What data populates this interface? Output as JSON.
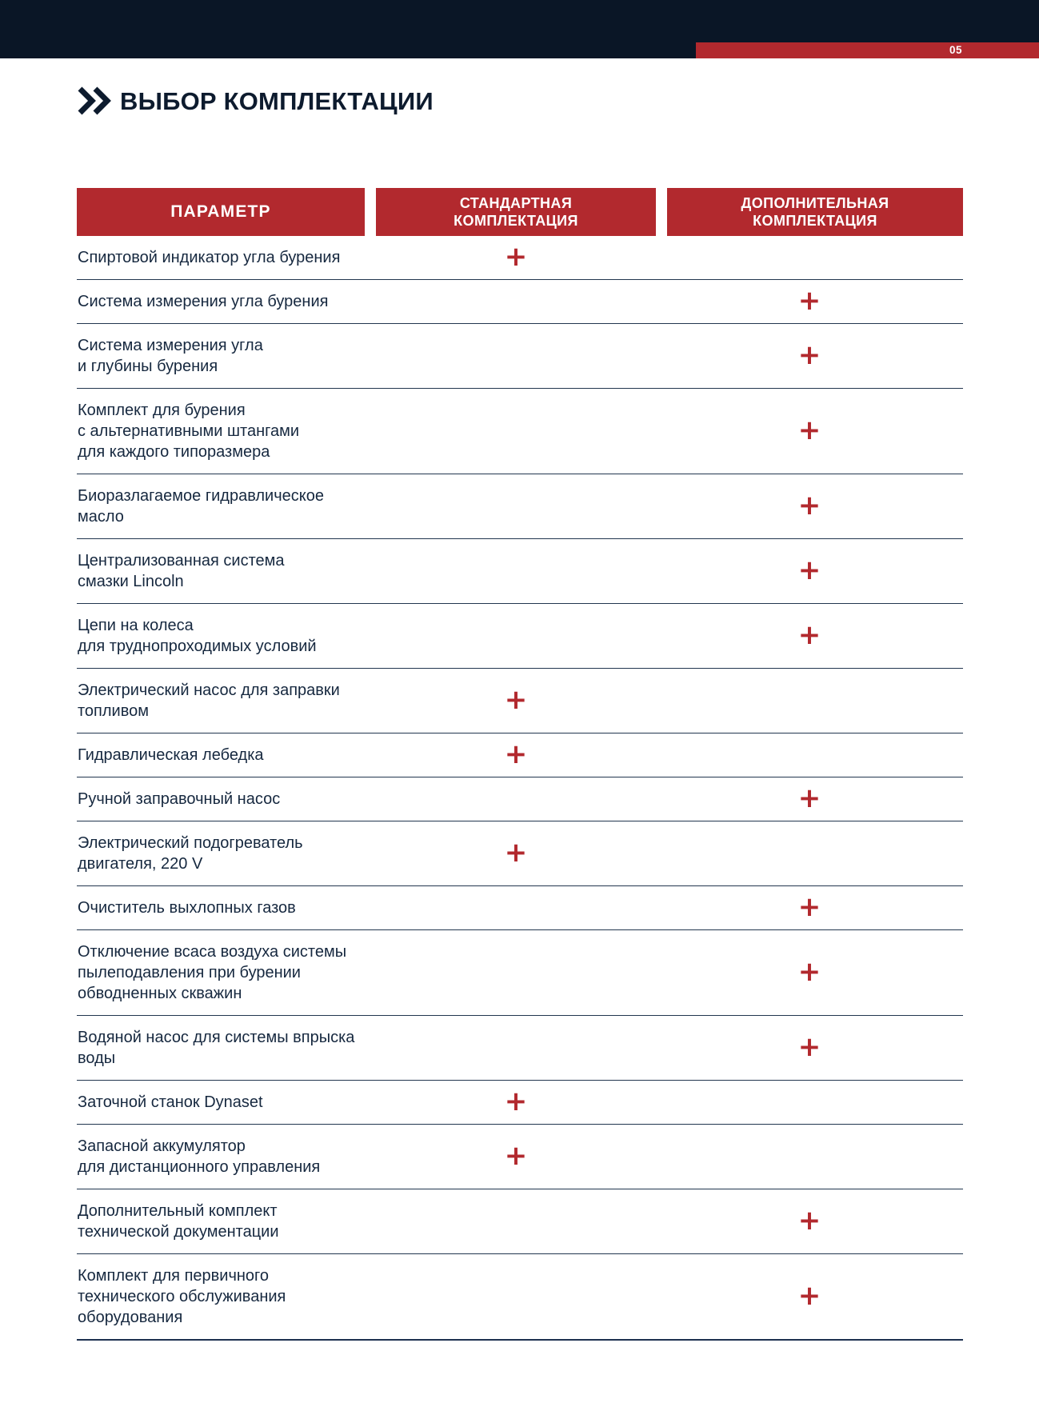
{
  "page": {
    "number": "05"
  },
  "title": {
    "text": "ВЫБОР КОМПЛЕКТАЦИИ",
    "icon": "double-chevron-right-icon"
  },
  "colors": {
    "navy": "#0a1626",
    "red": "#b2292e",
    "text": "#16283f",
    "rule": "#22364f"
  },
  "table": {
    "plus_symbol": "+",
    "columns": [
      {
        "key": "param",
        "label": "ПАРАМЕТР"
      },
      {
        "key": "standard",
        "label": "СТАНДАРТНАЯ\nКОМПЛЕКТАЦИЯ"
      },
      {
        "key": "additional",
        "label": "ДОПОЛНИТЕЛЬНАЯ\nКОМПЛЕКТАЦИЯ"
      }
    ],
    "rows": [
      {
        "lines": [
          "Спиртовой индикатор угла бурения"
        ],
        "standard": true,
        "additional": false
      },
      {
        "lines": [
          "Система измерения угла бурения"
        ],
        "standard": false,
        "additional": true
      },
      {
        "lines": [
          "Система измерения угла",
          "и глубины бурения"
        ],
        "standard": false,
        "additional": true
      },
      {
        "lines": [
          "Комплект для бурения",
          "с альтернативными штангами",
          "для каждого типоразмера"
        ],
        "standard": false,
        "additional": true
      },
      {
        "lines": [
          "Биоразлагаемое гидравлическое масло"
        ],
        "standard": false,
        "additional": true
      },
      {
        "lines": [
          "Централизованная система",
          "смазки Lincoln"
        ],
        "standard": false,
        "additional": true
      },
      {
        "lines": [
          "Цепи на колеса",
          "для труднопроходимых условий"
        ],
        "standard": false,
        "additional": true
      },
      {
        "lines": [
          "Электрический насос для заправки",
          "топливом"
        ],
        "standard": true,
        "additional": false
      },
      {
        "lines": [
          "Гидравлическая лебедка"
        ],
        "standard": true,
        "additional": false
      },
      {
        "lines": [
          "Ручной заправочный насос"
        ],
        "standard": false,
        "additional": true
      },
      {
        "lines": [
          "Электрический подогреватель",
          "двигателя, 220 V"
        ],
        "standard": true,
        "additional": false
      },
      {
        "lines": [
          "Очиститель выхлопных газов"
        ],
        "standard": false,
        "additional": true
      },
      {
        "lines": [
          "Отключение всаса воздуха системы",
          "пылеподавления при бурении",
          "обводненных скважин"
        ],
        "standard": false,
        "additional": true
      },
      {
        "lines": [
          "Водяной насос для системы впрыска воды"
        ],
        "standard": false,
        "additional": true
      },
      {
        "lines": [
          "Заточной станок Dynaset"
        ],
        "standard": true,
        "additional": false
      },
      {
        "lines": [
          "Запасной аккумулятор",
          "для дистанционного управления"
        ],
        "standard": true,
        "additional": false
      },
      {
        "lines": [
          "Дополнительный комплект",
          "технической документации"
        ],
        "standard": false,
        "additional": true
      },
      {
        "lines": [
          "Комплект для первичного",
          "технического обслуживания",
          "оборудования"
        ],
        "standard": false,
        "additional": true
      }
    ]
  }
}
